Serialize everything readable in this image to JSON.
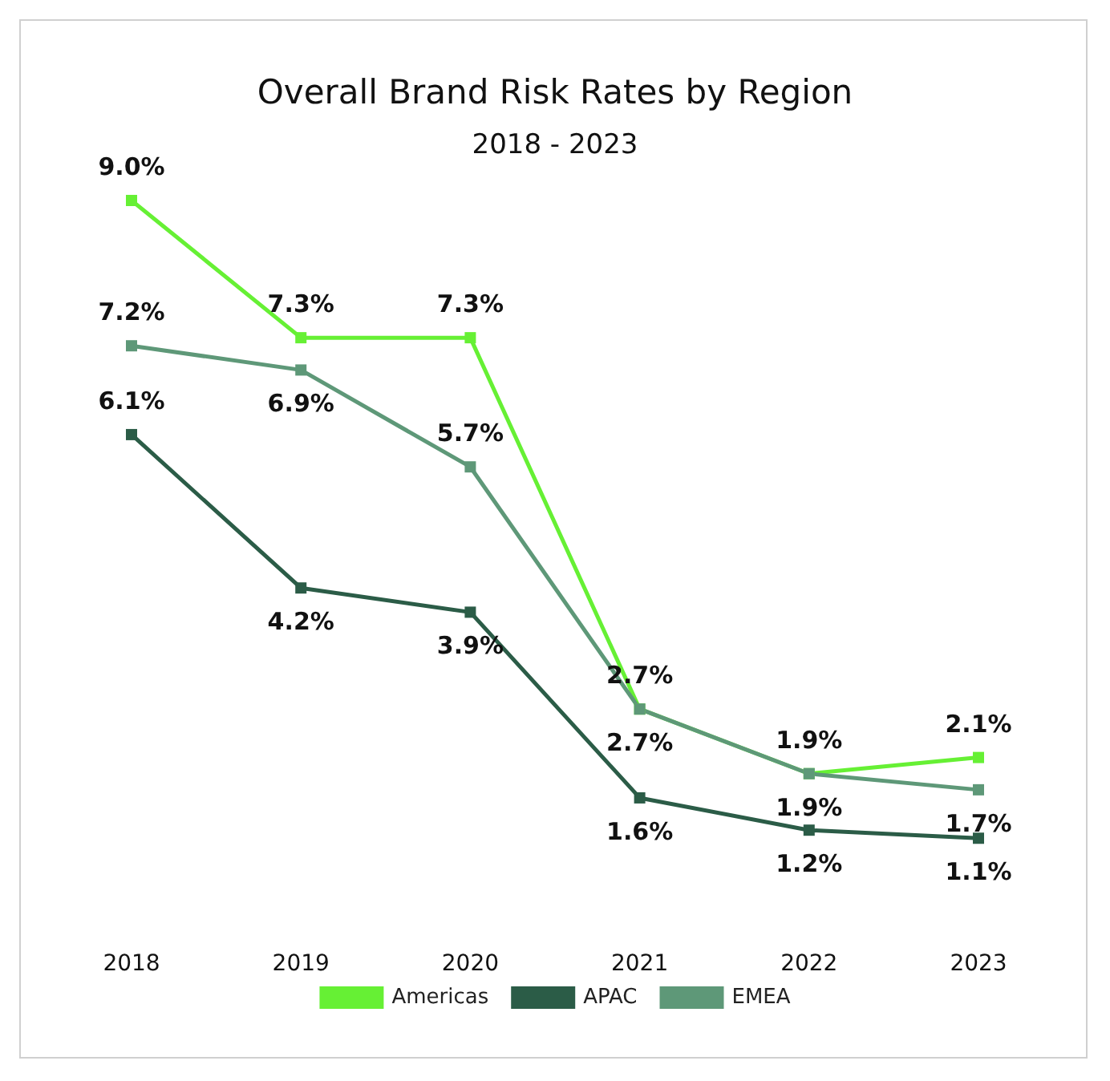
{
  "chart_data": {
    "type": "line",
    "title": "Overall Brand Risk Rates by Region",
    "subtitle": "2018 - 2023",
    "categories": [
      "2018",
      "2019",
      "2020",
      "2021",
      "2022",
      "2023"
    ],
    "marker": "square",
    "legend": "bottom",
    "tick_labels": "x",
    "series": [
      {
        "name": "Americas",
        "color": "#66f034",
        "values": [
          9.0,
          7.3,
          7.3,
          2.7,
          1.9,
          2.1
        ],
        "value_labels": [
          "9.0%",
          "7.3%",
          "7.3%",
          "2.7%",
          "1.9%",
          "2.1%"
        ]
      },
      {
        "name": "APAC",
        "color": "#2b5c47",
        "values": [
          6.1,
          4.2,
          3.9,
          1.6,
          1.2,
          1.1
        ],
        "value_labels": [
          "6.1%",
          "4.2%",
          "3.9%",
          "1.6%",
          "1.2%",
          "1.1%"
        ]
      },
      {
        "name": "EMEA",
        "color": "#5e9878",
        "values": [
          7.2,
          6.9,
          5.7,
          2.7,
          1.9,
          1.7
        ],
        "value_labels": [
          "7.2%",
          "6.9%",
          "5.7%",
          "2.7%",
          "1.9%",
          "1.7%"
        ]
      }
    ]
  }
}
